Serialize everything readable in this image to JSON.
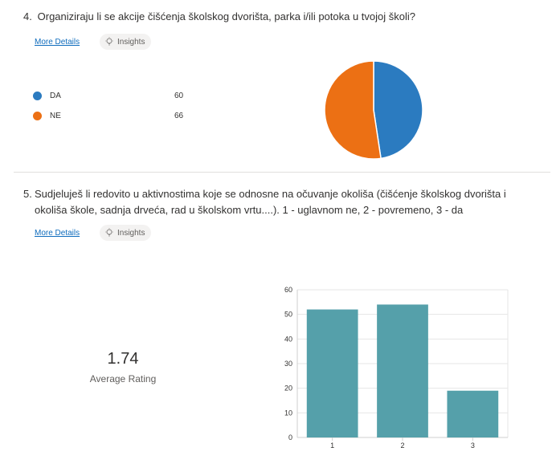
{
  "question4": {
    "number": "4.",
    "text": "Organiziraju li se akcije čišćenja školskog dvorišta, parka i/ili potoka u tvojoj školi?",
    "more_details": "More Details",
    "insights": "Insights",
    "legend": [
      {
        "label": "DA",
        "value": "60",
        "color": "#2b7bc0"
      },
      {
        "label": "NE",
        "value": "66",
        "color": "#ec7014"
      }
    ]
  },
  "question5": {
    "number": "5.",
    "text": "Sudjeluješ li redovito u aktivnostima koje se odnosne na očuvanje okoliša (čišćenje školskog dvorišta i okoliša škole, sadnja drveća, rad u školskom vrtu....). 1 - uglavnom ne, 2 - povremeno, 3 - da",
    "more_details": "More Details",
    "insights": "Insights",
    "average_value": "1.74",
    "average_label": "Average Rating"
  },
  "chart_data": [
    {
      "type": "pie",
      "categories": [
        "DA",
        "NE"
      ],
      "values": [
        60,
        66
      ],
      "colors": [
        "#2b7bc0",
        "#ec7014"
      ]
    },
    {
      "type": "bar",
      "categories": [
        "1",
        "2",
        "3"
      ],
      "values": [
        52,
        54,
        19
      ],
      "ylim": [
        0,
        60
      ],
      "yticks": [
        0,
        10,
        20,
        30,
        40,
        50,
        60
      ],
      "grid": true,
      "color": "#55a0aa"
    }
  ]
}
